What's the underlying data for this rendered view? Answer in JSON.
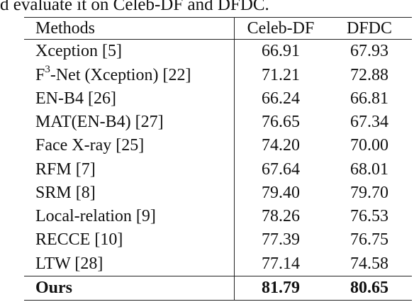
{
  "caption": "d evaluate it on Celeb-DF and DFDC.",
  "table": {
    "headers": {
      "method": "Methods",
      "celeb": "Celeb-DF",
      "dfdc": "DFDC"
    },
    "rows": [
      {
        "method": "Xception  [5]",
        "celeb": "66.91",
        "dfdc": "67.93"
      },
      {
        "method_pre": "F",
        "method_sup": "3",
        "method_post": "-Net (Xception)  [22]",
        "celeb": "71.21",
        "dfdc": "72.88"
      },
      {
        "method": "EN-B4  [26]",
        "celeb": "66.24",
        "dfdc": "66.81"
      },
      {
        "method": "MAT(EN-B4)  [27]",
        "celeb": "76.65",
        "dfdc": "67.34"
      },
      {
        "method": "Face X-ray  [25]",
        "celeb": "74.20",
        "dfdc": "70.00"
      },
      {
        "method": "RFM  [7]",
        "celeb": "67.64",
        "dfdc": "68.01"
      },
      {
        "method": "SRM  [8]",
        "celeb": "79.40",
        "dfdc": "79.70"
      },
      {
        "method": "Local-relation  [9]",
        "celeb": "78.26",
        "dfdc": "76.53"
      },
      {
        "method": "RECCE  [10]",
        "celeb": "77.39",
        "dfdc": "76.75"
      },
      {
        "method": "LTW  [28]",
        "celeb": "77.14",
        "dfdc": "74.58"
      }
    ],
    "ours": {
      "method": "Ours",
      "celeb": "81.79",
      "dfdc": "80.65"
    }
  }
}
